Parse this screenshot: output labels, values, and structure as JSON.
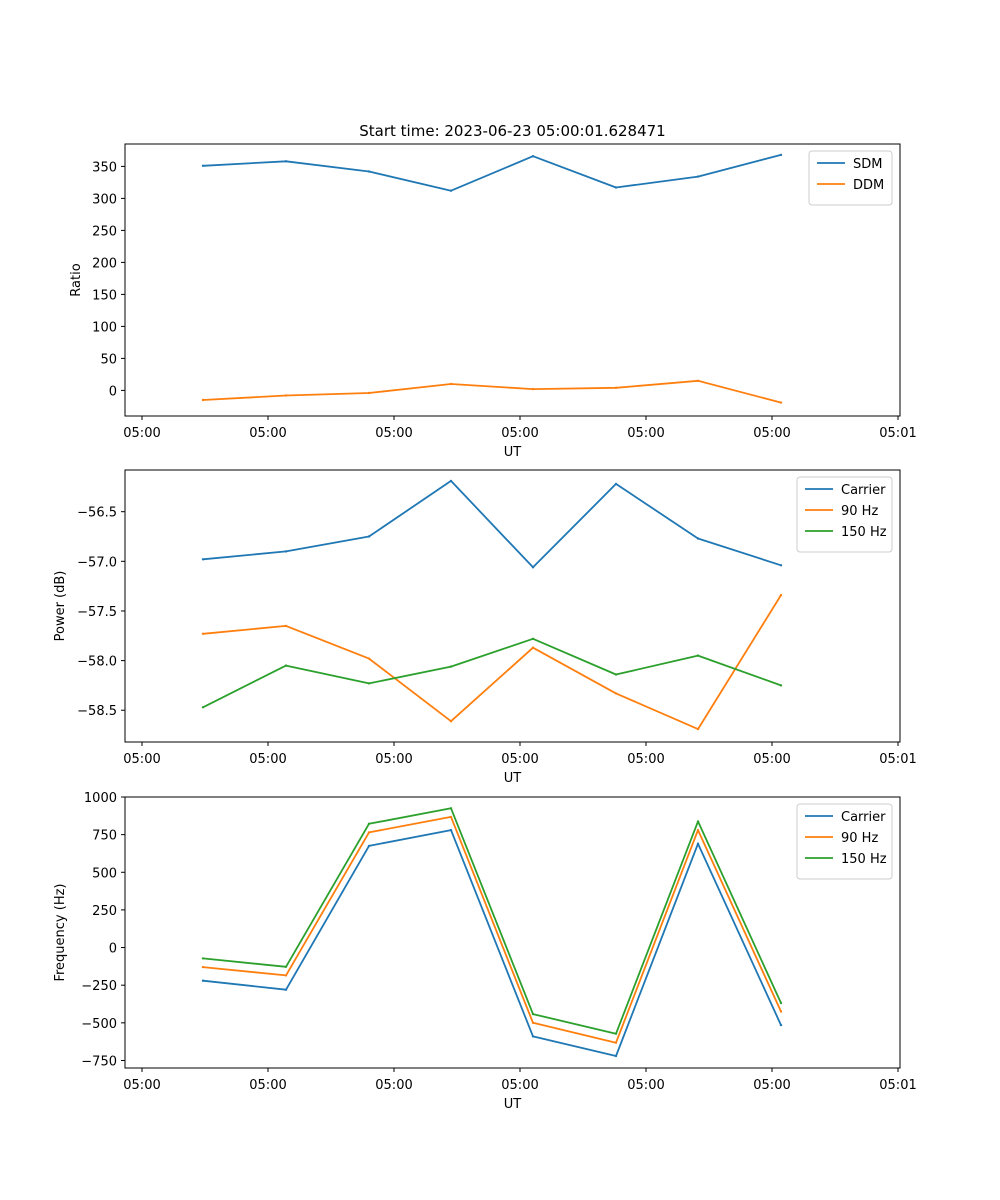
{
  "chart_data": [
    {
      "type": "line",
      "title": "Start time: 2023-06-23 05:00:01.628471",
      "xlabel": "UT",
      "ylabel": "Ratio",
      "x_tick_labels": [
        "05:00",
        "05:00",
        "05:00",
        "05:00",
        "05:00",
        "05:00",
        "05:01"
      ],
      "ylim": [
        -40,
        385
      ],
      "y_ticks": [
        0,
        50,
        100,
        150,
        200,
        250,
        300,
        350
      ],
      "legend_position": "upper right",
      "grid": false,
      "series": [
        {
          "name": "SDM",
          "color": "#1f77b4",
          "values": [
            351,
            358,
            342,
            312,
            366,
            317,
            334,
            368
          ]
        },
        {
          "name": "DDM",
          "color": "#ff7f0e",
          "values": [
            -15,
            -8,
            -4,
            10,
            2,
            4,
            15,
            -19
          ]
        }
      ]
    },
    {
      "type": "line",
      "title": "",
      "xlabel": "UT",
      "ylabel": "Power (dB)",
      "x_tick_labels": [
        "05:00",
        "05:00",
        "05:00",
        "05:00",
        "05:00",
        "05:00",
        "05:01"
      ],
      "ylim": [
        -58.82,
        -56.08
      ],
      "y_ticks": [
        -58.5,
        -58.0,
        -57.5,
        -57.0,
        -56.5
      ],
      "y_tick_labels": [
        "−58.5",
        "−58.0",
        "−57.5",
        "−57.0",
        "−56.5"
      ],
      "legend_position": "upper right",
      "grid": false,
      "series": [
        {
          "name": "Carrier",
          "color": "#1f77b4",
          "values": [
            -56.98,
            -56.9,
            -56.75,
            -56.19,
            -57.06,
            -56.22,
            -56.77,
            -57.04
          ]
        },
        {
          "name": "90 Hz",
          "color": "#ff7f0e",
          "values": [
            -57.73,
            -57.65,
            -57.98,
            -58.61,
            -57.87,
            -58.33,
            -58.69,
            -57.34
          ]
        },
        {
          "name": "150 Hz",
          "color": "#2ca02c",
          "values": [
            -58.47,
            -58.05,
            -58.23,
            -58.06,
            -57.78,
            -58.14,
            -57.95,
            -58.25
          ]
        }
      ]
    },
    {
      "type": "line",
      "title": "",
      "xlabel": "UT",
      "ylabel": "Frequency (Hz)",
      "x_tick_labels": [
        "05:00",
        "05:00",
        "05:00",
        "05:00",
        "05:00",
        "05:00",
        "05:01"
      ],
      "ylim": [
        -800,
        1000
      ],
      "y_ticks": [
        -750,
        -500,
        -250,
        0,
        250,
        500,
        750,
        1000
      ],
      "y_tick_labels": [
        "−750",
        "−500",
        "−250",
        "0",
        "250",
        "500",
        "750",
        "1000"
      ],
      "legend_position": "upper right",
      "grid": false,
      "series": [
        {
          "name": "Carrier",
          "color": "#1f77b4",
          "values": [
            -220,
            -280,
            675,
            780,
            -590,
            -720,
            690,
            -515
          ]
        },
        {
          "name": "90 Hz",
          "color": "#ff7f0e",
          "values": [
            -130,
            -185,
            765,
            868,
            -500,
            -632,
            780,
            -425
          ]
        },
        {
          "name": "150 Hz",
          "color": "#2ca02c",
          "values": [
            -72,
            -128,
            822,
            925,
            -442,
            -572,
            838,
            -368
          ]
        }
      ]
    }
  ]
}
